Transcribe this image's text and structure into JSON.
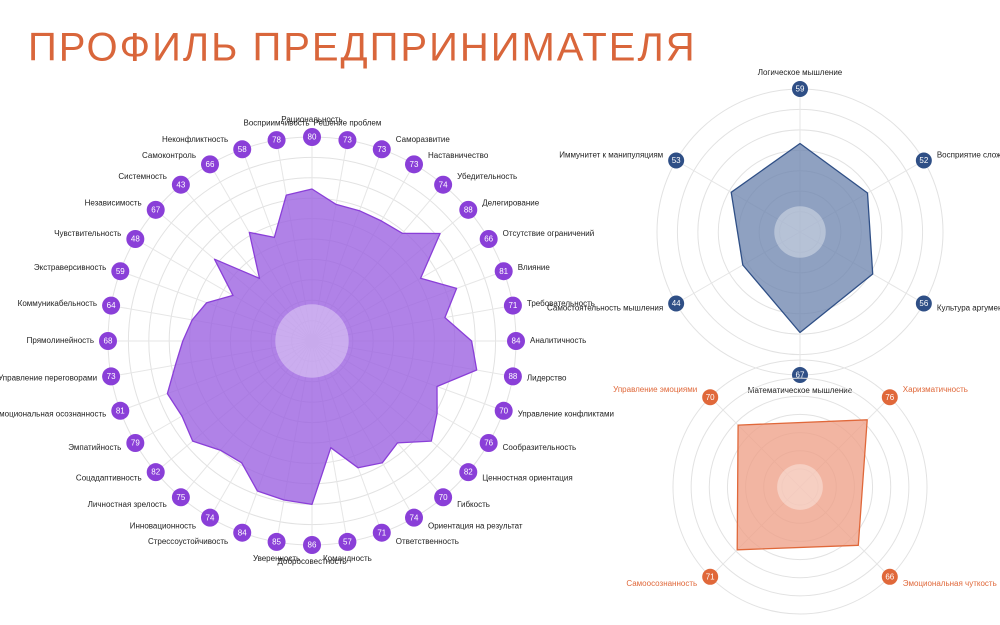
{
  "title": "ПРОФИЛЬ ПРЕДПРИНИМАТЕЛЯ",
  "chart_data": [
    {
      "type": "radar",
      "color": "#8a3fd8",
      "fill": "#9a5fe0",
      "rlim": [
        0,
        100
      ],
      "grid": true,
      "categories": [
        "Рациональность",
        "Решение проблем",
        "Саморазвитие",
        "Наставничество",
        "Убедительность",
        "Делегирование",
        "Отсутствие ограничений",
        "Влияние",
        "Требовательность",
        "Аналитичность",
        "Лидерство",
        "Управление конфликтами",
        "Сообразительность",
        "Ценностная ориентация",
        "Гибкость",
        "Ориентация на результат",
        "Ответственность",
        "Командность",
        "Добросовестность",
        "Уверенность",
        "Стрессоустойчивость",
        "Инновационность",
        "Личностная зрелость",
        "Соцадаптивность",
        "Эмпатийность",
        "Эмоциональная осознанность",
        "Управление переговорами",
        "Прямолинейность",
        "Коммуникабельность",
        "Экстраверсивность",
        "Чувствительность",
        "Независимость",
        "Системность",
        "Самоконтроль",
        "Неконфликтность",
        "Восприимчивость"
      ],
      "values": [
        80,
        73,
        73,
        73,
        74,
        88,
        66,
        81,
        71,
        84,
        88,
        70,
        76,
        82,
        70,
        74,
        71,
        57,
        86,
        85,
        84,
        74,
        75,
        82,
        79,
        81,
        73,
        68,
        64,
        59,
        48,
        67,
        43,
        66,
        58,
        78
      ]
    },
    {
      "type": "radar",
      "color": "#2f4f86",
      "fill": "#6f86b0",
      "rlim": [
        0,
        100
      ],
      "grid": true,
      "categories": [
        "Логическое мышление",
        "Восприятие сложной информации",
        "Культура аргументации",
        "Математическое мышление",
        "Самостоятельность мышления",
        "Иммунитет к манипуляциям"
      ],
      "values": [
        59,
        52,
        56,
        67,
        44,
        53
      ]
    },
    {
      "type": "radar",
      "color": "#e0683a",
      "fill": "#eea088",
      "rlim": [
        0,
        100
      ],
      "grid": true,
      "start_angle": -45,
      "categories": [
        "Управление эмоциями",
        "Харизматичность",
        "Эмоциональная чуткость",
        "Самоосознанность"
      ],
      "values": [
        70,
        76,
        66,
        71
      ]
    }
  ]
}
